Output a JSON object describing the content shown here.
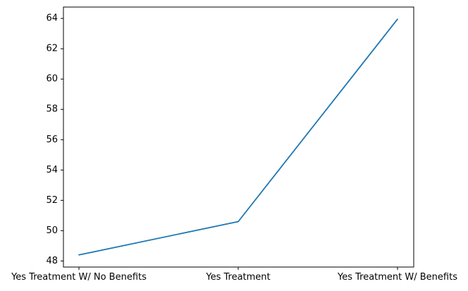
{
  "chart_data": {
    "type": "line",
    "categories": [
      "Yes Treatment W/ No Benefits",
      "Yes Treatment",
      "Yes Treatment W/ Benefits"
    ],
    "series": [
      {
        "values": [
          48.4,
          50.6,
          63.95
        ],
        "color": "#1f77b4"
      }
    ],
    "ylim": [
      47.6,
      64.75
    ],
    "yticks": [
      48,
      50,
      52,
      54,
      56,
      58,
      60,
      62,
      64
    ],
    "grid": false,
    "legend": "none",
    "title": "",
    "xlabel": "",
    "ylabel": ""
  }
}
